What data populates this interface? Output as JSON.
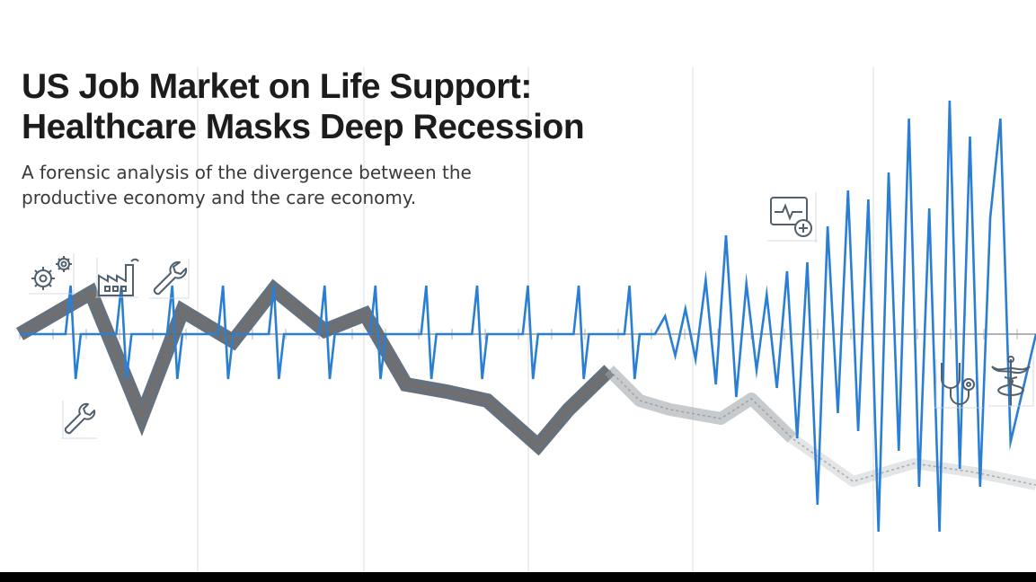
{
  "header": {
    "title_line1": "US Job Market on Life Support:",
    "title_line2": "Healthcare Masks Deep Recession",
    "subtitle_line1": "A forensic analysis of the divergence between the",
    "subtitle_line2": "productive economy and the care economy."
  },
  "colors": {
    "productive": "#5b656e",
    "productive_core": "#8a6a4e",
    "productive_fade": "#c8cbce",
    "healthcare": "#2a7fd4",
    "grid": "#e2e2e2",
    "baseline": "#9a9a9a",
    "icon": "#50606e"
  },
  "icons": {
    "productive": [
      "gears-icon",
      "factory-icon",
      "wrench-icon",
      "wrench-small-icon"
    ],
    "healthcare": [
      "heart-monitor-icon",
      "stethoscope-icon",
      "caduceus-icon"
    ]
  },
  "chart_data": {
    "type": "line",
    "title": "",
    "xlabel": "",
    "ylabel": "",
    "grid": true,
    "xlim": [
      0,
      100
    ],
    "ylim": [
      -100,
      100
    ],
    "series": [
      {
        "role": "productive",
        "x": [
          0,
          7,
          12,
          16,
          21,
          25,
          30,
          34,
          38,
          42,
          46,
          51,
          54,
          58,
          61,
          64,
          69,
          72,
          76,
          82,
          88,
          94,
          100
        ],
        "y": [
          0,
          23,
          -46,
          13,
          -4,
          25,
          2,
          11,
          -28,
          -32,
          -37,
          -62,
          -42,
          -20,
          -37,
          -42,
          -47,
          -36,
          -58,
          -82,
          -72,
          -77,
          -84
        ]
      },
      {
        "role": "healthcare",
        "x": [
          0,
          4.5,
          5.0,
          5.5,
          6.0,
          9.5,
          10.0,
          10.5,
          11.0,
          14.5,
          15.0,
          15.5,
          16.0,
          19.5,
          20.0,
          20.5,
          21.0,
          24.5,
          25.0,
          25.5,
          26.0,
          29.5,
          30.0,
          30.5,
          31.0,
          34.5,
          35.0,
          35.5,
          36.0,
          39.5,
          40.0,
          40.5,
          41.0,
          44.5,
          45.0,
          45.5,
          46.0,
          49.5,
          50.0,
          50.5,
          51.0,
          54.5,
          55.0,
          55.5,
          56.0,
          59.5,
          60.0,
          60.5,
          61.0,
          62.5,
          63.5,
          64.5,
          65.5,
          66.5,
          67.5,
          68.5,
          69.5,
          70.5,
          71.5,
          72.5,
          73.5,
          74.5,
          75.5,
          76.5,
          77.5,
          78.5,
          79.5,
          80.5,
          81.5,
          82.5,
          83.5,
          84.5,
          85.5,
          86.5,
          87.5,
          88.5,
          89.5,
          90.5,
          91.5,
          92.5,
          93.5,
          94.5,
          95.5,
          96.5,
          97.5,
          100
        ],
        "y": [
          0,
          0,
          27,
          -25,
          0,
          0,
          27,
          -25,
          0,
          0,
          27,
          -25,
          0,
          0,
          27,
          -25,
          0,
          0,
          27,
          -25,
          0,
          0,
          27,
          -25,
          0,
          0,
          27,
          -25,
          0,
          0,
          27,
          -25,
          0,
          0,
          27,
          -25,
          0,
          0,
          27,
          -25,
          0,
          0,
          27,
          -25,
          0,
          0,
          27,
          -25,
          0,
          0,
          10,
          -12,
          14,
          -14,
          30,
          -28,
          55,
          -35,
          28,
          -20,
          22,
          -30,
          35,
          -58,
          40,
          -95,
          60,
          -44,
          80,
          -54,
          75,
          -110,
          90,
          -65,
          120,
          -85,
          70,
          -110,
          130,
          -75,
          110,
          -85,
          65,
          120,
          -60,
          0
        ]
      }
    ]
  }
}
